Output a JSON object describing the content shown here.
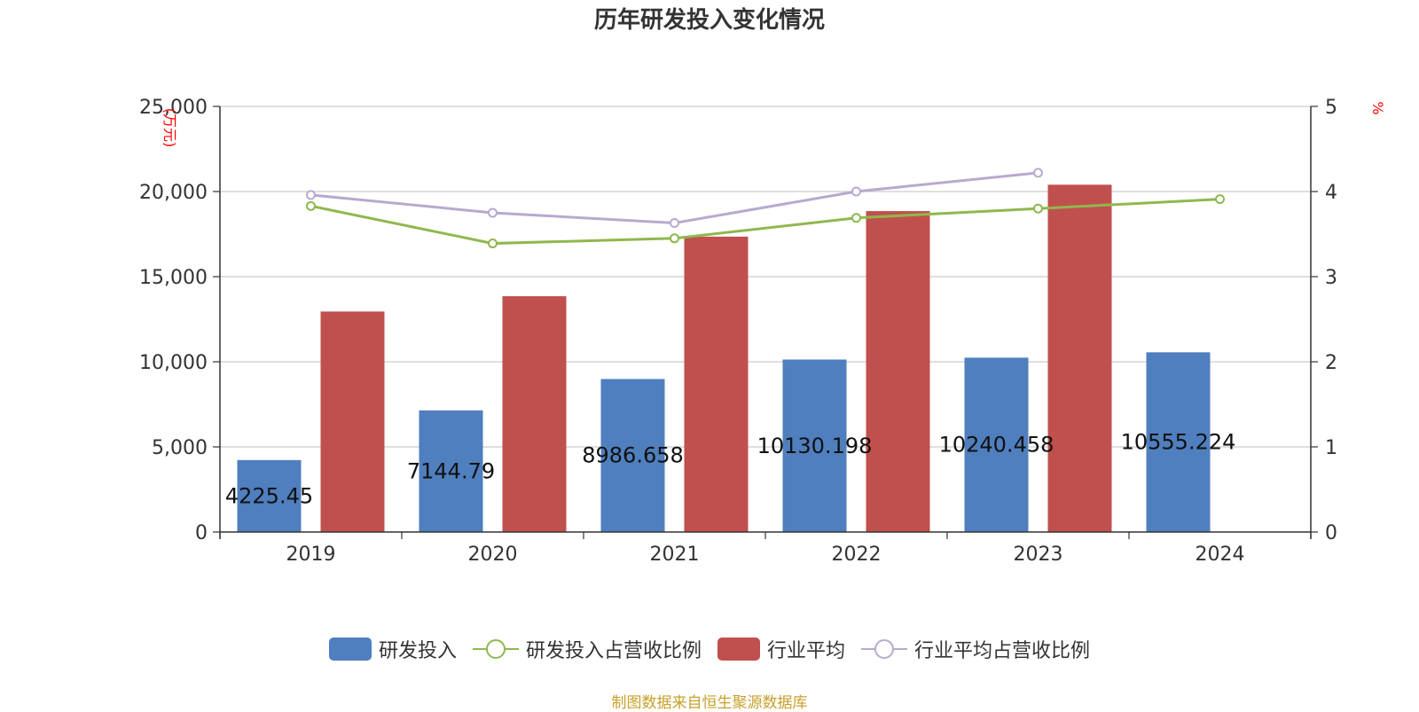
{
  "title": "历年研发投入变化情况",
  "source": "制图数据来自恒生聚源数据库",
  "chart_data": {
    "type": "bar",
    "title": "历年研发投入变化情况",
    "categories": [
      "2019",
      "2020",
      "2021",
      "2022",
      "2023",
      "2024"
    ],
    "y_left": {
      "unit": "(万元)",
      "range": [
        0,
        25000
      ],
      "ticks": [
        "0",
        "5,000",
        "10,000",
        "15,000",
        "20,000",
        "25,000"
      ]
    },
    "y_right": {
      "unit": "%",
      "range": [
        0,
        5
      ],
      "ticks": [
        "0",
        "1",
        "2",
        "3",
        "4",
        "5"
      ]
    },
    "series": [
      {
        "name": "研发投入",
        "type": "bar",
        "axis": "left",
        "color": "#4f7fbe",
        "values": [
          4225.45,
          7144.79,
          8986.658,
          10130.198,
          10240.458,
          10555.224
        ],
        "labels": [
          "4225.45",
          "7144.79",
          "8986.658",
          "10130.198",
          "10240.458",
          "10555.224"
        ]
      },
      {
        "name": "研发投入占营收比例",
        "type": "line",
        "axis": "right",
        "color": "#8fb84e",
        "values": [
          3.83,
          3.39,
          3.45,
          3.69,
          3.8,
          3.91
        ]
      },
      {
        "name": "行业平均",
        "type": "bar",
        "axis": "left",
        "color": "#c0504d",
        "values": [
          12950,
          13850,
          17350,
          18850,
          20400,
          null
        ]
      },
      {
        "name": "行业平均占营收比例",
        "type": "line",
        "axis": "right",
        "color": "#b8a9cf",
        "values": [
          3.96,
          3.75,
          3.63,
          4.0,
          4.22,
          null
        ]
      }
    ],
    "grid": true,
    "legend_position": "bottom"
  }
}
